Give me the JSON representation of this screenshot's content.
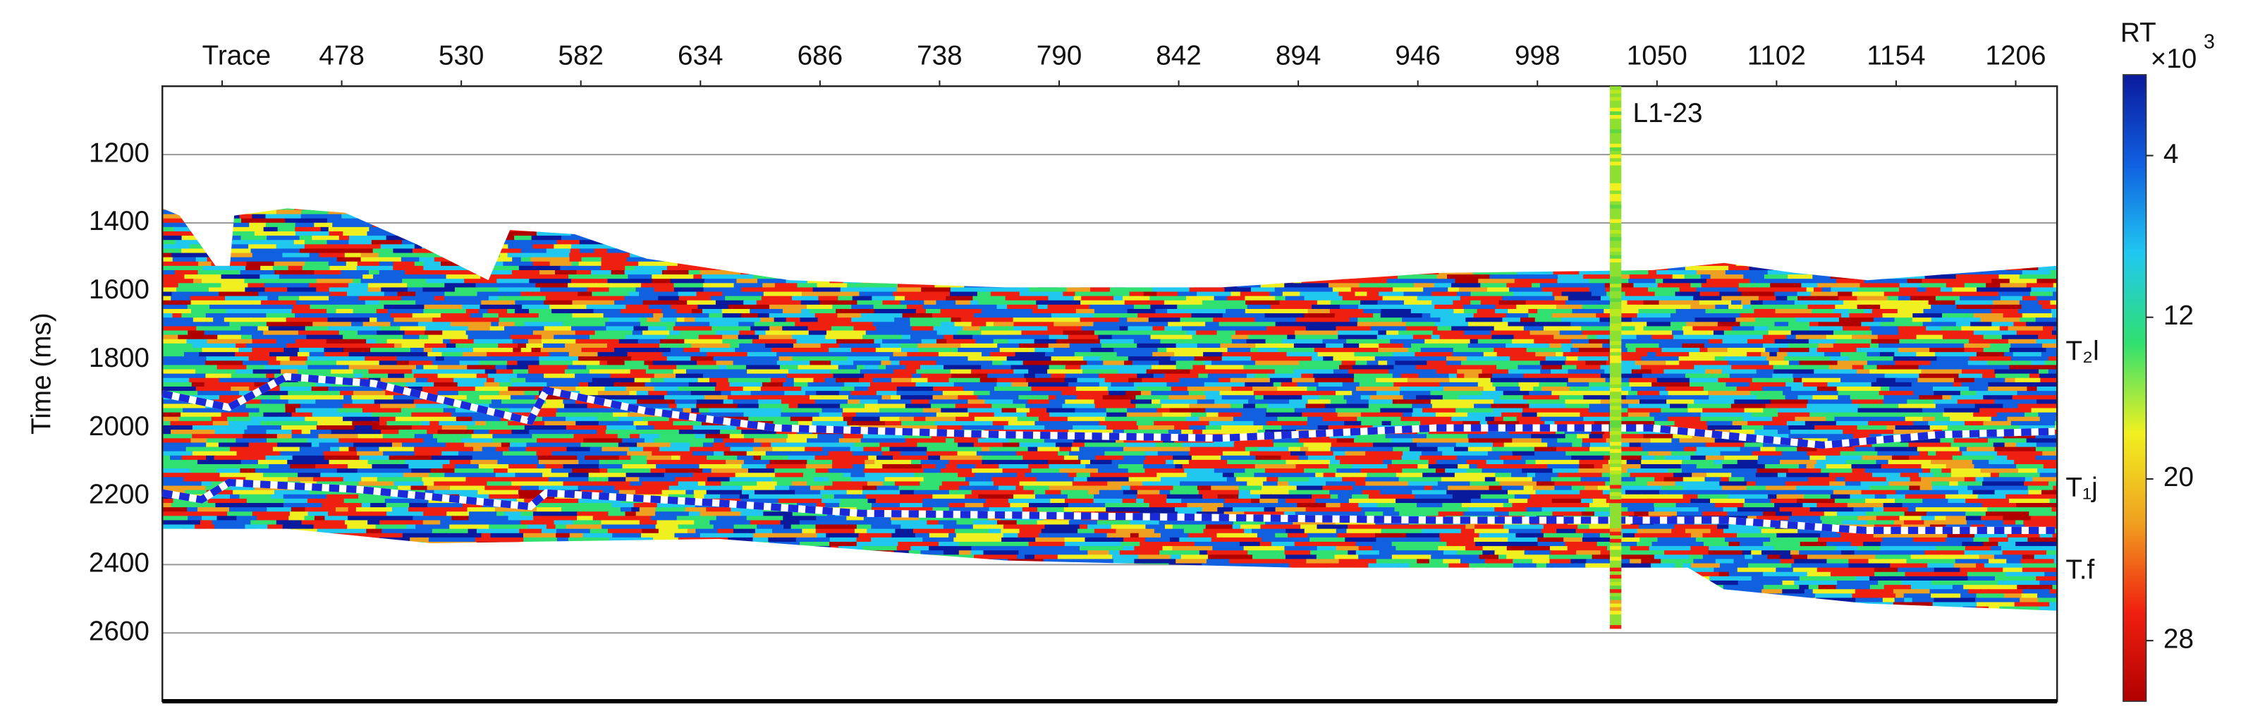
{
  "chart_data": {
    "type": "section",
    "y_label": "Time (ms)",
    "xlim": [
      400,
      1224
    ],
    "xticks": [
      {
        "value": 426,
        "label": "Trace"
      },
      478,
      530,
      582,
      634,
      686,
      738,
      790,
      842,
      894,
      946,
      998,
      1050,
      1102,
      1154,
      1206
    ],
    "ylim": [
      1000,
      2800
    ],
    "y_inverted": true,
    "yticks": [
      1200,
      1400,
      1600,
      1800,
      2000,
      2200,
      2400,
      2600
    ],
    "grid": true,
    "colorbar": {
      "label": "RT",
      "multiplier": "×10",
      "multiplier_exponent": "3",
      "clim": [
        0,
        31
      ],
      "ticks": [
        4,
        12,
        20,
        28
      ],
      "colors": [
        "#0a1a9c",
        "#1060e0",
        "#20c8f0",
        "#30e070",
        "#f0f020",
        "#f0a020",
        "#f02010",
        "#b00000"
      ]
    },
    "horizons": [
      {
        "color": "#1a2ad8",
        "x": [
          400,
          429,
          454,
          492,
          560,
          567,
          610,
          667,
          766,
          860,
          954,
          1047,
          1122,
          1172,
          1223
        ],
        "values": [
          1900,
          1940,
          1850,
          1870,
          1980,
          1890,
          1950,
          2000,
          2020,
          2030,
          2000,
          2000,
          2050,
          2020,
          2010
        ]
      },
      {
        "color": "#1a2ad8",
        "x": [
          400,
          417,
          429,
          485,
          560,
          567,
          642,
          704,
          829,
          954,
          1079,
          1141,
          1223
        ],
        "values": [
          2190,
          2210,
          2160,
          2180,
          2230,
          2190,
          2220,
          2250,
          2260,
          2270,
          2270,
          2300,
          2300
        ]
      }
    ],
    "horizon_labels": [
      {
        "label": "T₂l",
        "time": 1780
      },
      {
        "label": "T₁j",
        "time": 2180
      },
      {
        "label": "T.f",
        "time": 2420
      }
    ],
    "well": {
      "name": "L1-23",
      "trace": 1032,
      "time_range": [
        1000,
        2580
      ]
    }
  }
}
